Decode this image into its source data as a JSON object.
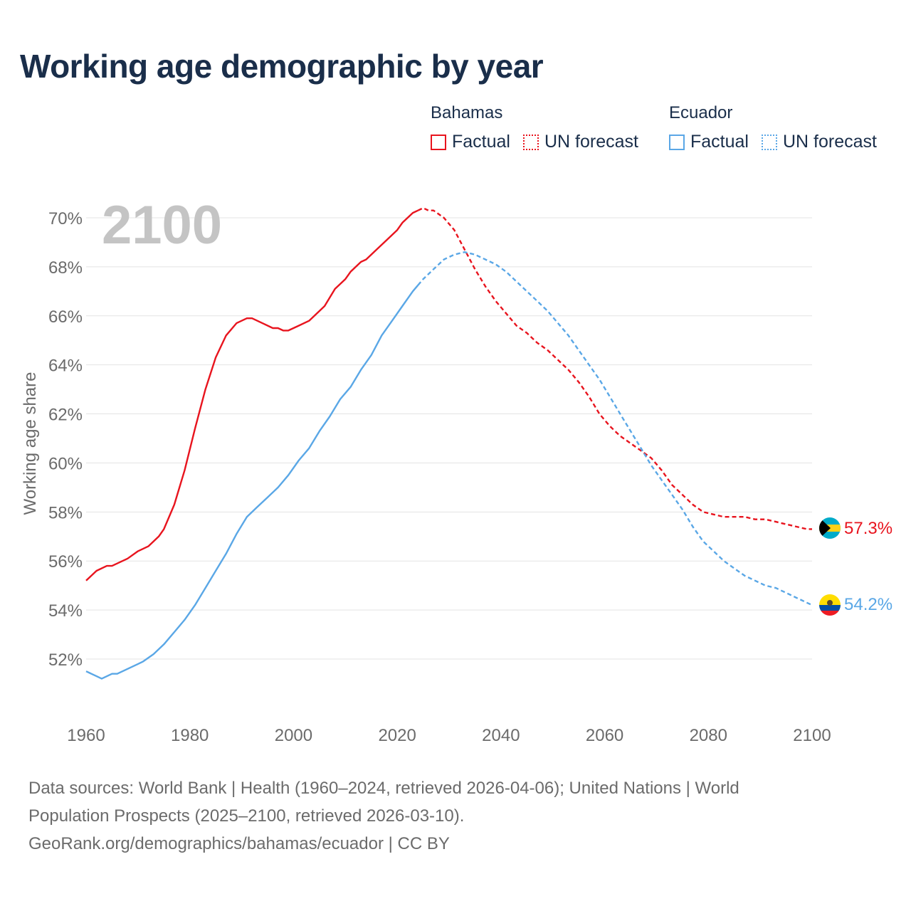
{
  "chart_data": {
    "type": "line",
    "title": "Working age demographic by year",
    "year_watermark": "2100",
    "xlabel": "",
    "ylabel": "Working age share",
    "xlim": [
      1960,
      2100
    ],
    "ylim": [
      50,
      71
    ],
    "x_ticks": [
      1960,
      1980,
      2000,
      2020,
      2040,
      2060,
      2080,
      2100
    ],
    "y_ticks": [
      52,
      54,
      56,
      58,
      60,
      62,
      64,
      66,
      68,
      70
    ],
    "y_tick_labels": [
      "52%",
      "54%",
      "56%",
      "58%",
      "60%",
      "62%",
      "64%",
      "66%",
      "68%",
      "70%"
    ],
    "grid": true,
    "legend_position": "top-right",
    "legend": {
      "groups": [
        {
          "name": "Bahamas",
          "factual_label": "Factual",
          "forecast_label": "UN forecast",
          "color": "#e8141e"
        },
        {
          "name": "Ecuador",
          "factual_label": "Factual",
          "forecast_label": "UN forecast",
          "color": "#5aa7e6"
        }
      ]
    },
    "series": [
      {
        "name": "Bahamas",
        "color": "#e8141e",
        "end_label": "57.3%",
        "factual_range": [
          1960,
          2024
        ],
        "forecast_range": [
          2024,
          2100
        ],
        "points": [
          [
            1960,
            55.2
          ],
          [
            1962,
            55.6
          ],
          [
            1964,
            55.8
          ],
          [
            1965,
            55.8
          ],
          [
            1968,
            56.1
          ],
          [
            1970,
            56.4
          ],
          [
            1972,
            56.6
          ],
          [
            1974,
            57.0
          ],
          [
            1975,
            57.3
          ],
          [
            1977,
            58.3
          ],
          [
            1979,
            59.7
          ],
          [
            1981,
            61.4
          ],
          [
            1983,
            63.0
          ],
          [
            1985,
            64.3
          ],
          [
            1987,
            65.2
          ],
          [
            1989,
            65.7
          ],
          [
            1991,
            65.9
          ],
          [
            1992,
            65.9
          ],
          [
            1994,
            65.7
          ],
          [
            1996,
            65.5
          ],
          [
            1997,
            65.5
          ],
          [
            1998,
            65.4
          ],
          [
            1999,
            65.4
          ],
          [
            2001,
            65.6
          ],
          [
            2003,
            65.8
          ],
          [
            2005,
            66.2
          ],
          [
            2006,
            66.4
          ],
          [
            2008,
            67.1
          ],
          [
            2010,
            67.5
          ],
          [
            2011,
            67.8
          ],
          [
            2013,
            68.2
          ],
          [
            2014,
            68.3
          ],
          [
            2016,
            68.7
          ],
          [
            2018,
            69.1
          ],
          [
            2020,
            69.5
          ],
          [
            2021,
            69.8
          ],
          [
            2023,
            70.2
          ],
          [
            2025,
            70.4
          ],
          [
            2026,
            70.3
          ],
          [
            2027,
            70.3
          ],
          [
            2029,
            70.0
          ],
          [
            2031,
            69.5
          ],
          [
            2033,
            68.7
          ],
          [
            2035,
            67.9
          ],
          [
            2037,
            67.2
          ],
          [
            2039,
            66.6
          ],
          [
            2041,
            66.1
          ],
          [
            2043,
            65.6
          ],
          [
            2045,
            65.3
          ],
          [
            2047,
            64.9
          ],
          [
            2049,
            64.6
          ],
          [
            2051,
            64.2
          ],
          [
            2053,
            63.8
          ],
          [
            2055,
            63.3
          ],
          [
            2057,
            62.7
          ],
          [
            2059,
            62.0
          ],
          [
            2061,
            61.5
          ],
          [
            2063,
            61.1
          ],
          [
            2065,
            60.8
          ],
          [
            2067,
            60.5
          ],
          [
            2069,
            60.2
          ],
          [
            2071,
            59.7
          ],
          [
            2073,
            59.1
          ],
          [
            2075,
            58.7
          ],
          [
            2077,
            58.3
          ],
          [
            2079,
            58.0
          ],
          [
            2081,
            57.9
          ],
          [
            2083,
            57.8
          ],
          [
            2085,
            57.8
          ],
          [
            2087,
            57.8
          ],
          [
            2089,
            57.7
          ],
          [
            2091,
            57.7
          ],
          [
            2093,
            57.6
          ],
          [
            2095,
            57.5
          ],
          [
            2097,
            57.4
          ],
          [
            2099,
            57.3
          ],
          [
            2100,
            57.3
          ]
        ]
      },
      {
        "name": "Ecuador",
        "color": "#5aa7e6",
        "end_label": "54.2%",
        "factual_range": [
          1960,
          2024
        ],
        "forecast_range": [
          2024,
          2100
        ],
        "points": [
          [
            1960,
            51.5
          ],
          [
            1962,
            51.3
          ],
          [
            1963,
            51.2
          ],
          [
            1965,
            51.4
          ],
          [
            1966,
            51.4
          ],
          [
            1968,
            51.6
          ],
          [
            1970,
            51.8
          ],
          [
            1971,
            51.9
          ],
          [
            1973,
            52.2
          ],
          [
            1975,
            52.6
          ],
          [
            1977,
            53.1
          ],
          [
            1979,
            53.6
          ],
          [
            1981,
            54.2
          ],
          [
            1983,
            54.9
          ],
          [
            1985,
            55.6
          ],
          [
            1987,
            56.3
          ],
          [
            1989,
            57.1
          ],
          [
            1991,
            57.8
          ],
          [
            1993,
            58.2
          ],
          [
            1995,
            58.6
          ],
          [
            1997,
            59.0
          ],
          [
            1999,
            59.5
          ],
          [
            2001,
            60.1
          ],
          [
            2003,
            60.6
          ],
          [
            2005,
            61.3
          ],
          [
            2007,
            61.9
          ],
          [
            2009,
            62.6
          ],
          [
            2011,
            63.1
          ],
          [
            2013,
            63.8
          ],
          [
            2015,
            64.4
          ],
          [
            2017,
            65.2
          ],
          [
            2019,
            65.8
          ],
          [
            2021,
            66.4
          ],
          [
            2023,
            67.0
          ],
          [
            2025,
            67.5
          ],
          [
            2027,
            67.9
          ],
          [
            2029,
            68.3
          ],
          [
            2031,
            68.5
          ],
          [
            2033,
            68.6
          ],
          [
            2035,
            68.5
          ],
          [
            2037,
            68.3
          ],
          [
            2039,
            68.1
          ],
          [
            2041,
            67.8
          ],
          [
            2043,
            67.4
          ],
          [
            2045,
            67.0
          ],
          [
            2047,
            66.6
          ],
          [
            2049,
            66.2
          ],
          [
            2051,
            65.7
          ],
          [
            2053,
            65.2
          ],
          [
            2055,
            64.6
          ],
          [
            2057,
            64.0
          ],
          [
            2059,
            63.4
          ],
          [
            2061,
            62.7
          ],
          [
            2063,
            62.0
          ],
          [
            2065,
            61.3
          ],
          [
            2067,
            60.6
          ],
          [
            2069,
            59.9
          ],
          [
            2071,
            59.3
          ],
          [
            2073,
            58.7
          ],
          [
            2075,
            58.1
          ],
          [
            2077,
            57.4
          ],
          [
            2079,
            56.8
          ],
          [
            2081,
            56.4
          ],
          [
            2083,
            56.0
          ],
          [
            2085,
            55.7
          ],
          [
            2087,
            55.4
          ],
          [
            2089,
            55.2
          ],
          [
            2091,
            55.0
          ],
          [
            2093,
            54.9
          ],
          [
            2095,
            54.7
          ],
          [
            2097,
            54.5
          ],
          [
            2099,
            54.3
          ],
          [
            2100,
            54.2
          ]
        ]
      }
    ]
  },
  "footer": {
    "line1": "Data sources: World Bank | Health (1960–2024, retrieved 2026-04-06); United Nations | World",
    "line2": "Population Prospects (2025–2100, retrieved 2026-03-10).",
    "line3": "GeoRank.org/demographics/bahamas/ecuador | CC BY"
  }
}
